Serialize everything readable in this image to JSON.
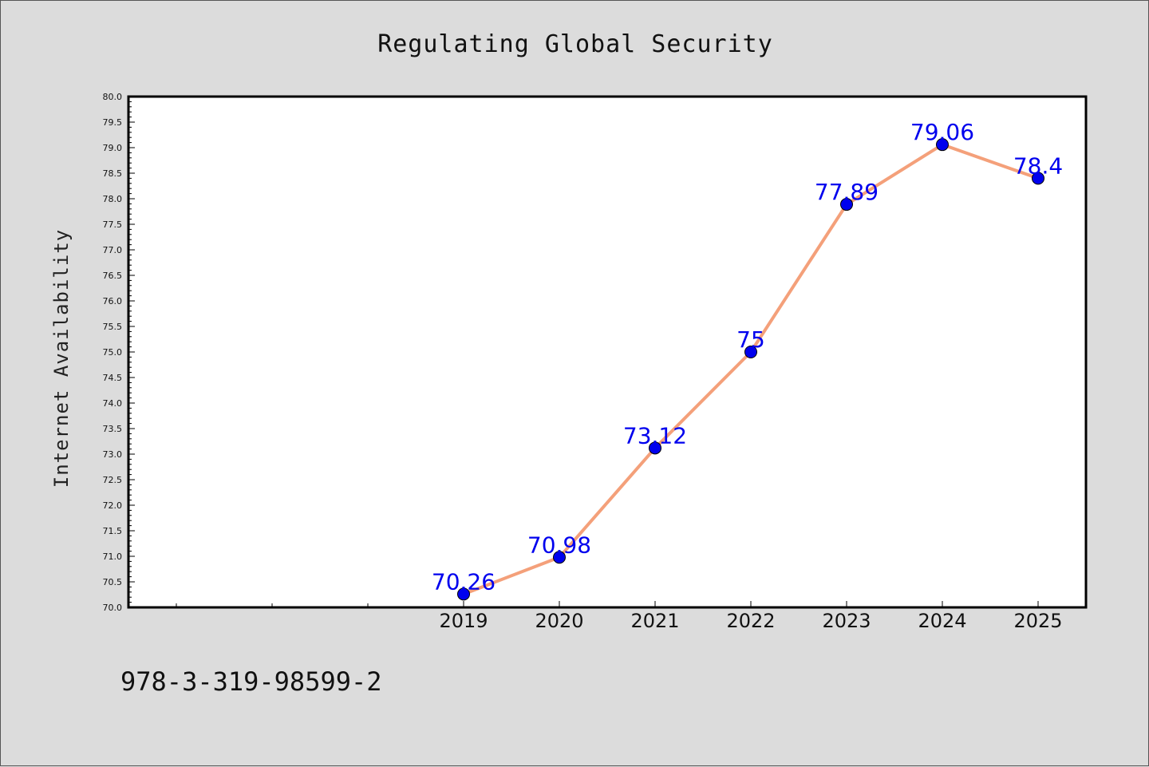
{
  "chart_data": {
    "type": "line",
    "title": "Regulating Global Security",
    "xlabel": "",
    "ylabel": "Internet Availability",
    "categories": [
      "2019",
      "2020",
      "2021",
      "2022",
      "2023",
      "2024",
      "2025"
    ],
    "series": [
      {
        "values": [
          70.26,
          70.98,
          73.12,
          75,
          77.89,
          79.06,
          78.4
        ],
        "labels": [
          "70.26",
          "70.98",
          "73.12",
          "75",
          "77.89",
          "79.06",
          "78.4"
        ]
      }
    ],
    "ylim": [
      70.0,
      80.0
    ],
    "yticks": [
      "70.0",
      "70.5",
      "71.0",
      "71.5",
      "72.0",
      "72.5",
      "73.0",
      "73.5",
      "74.0",
      "74.5",
      "75.0",
      "75.5",
      "76.0",
      "76.5",
      "77.0",
      "77.5",
      "78.0",
      "78.5",
      "79.0",
      "79.5",
      "80.0"
    ],
    "grid": false,
    "colors": {
      "line": "#f4a07a",
      "marker": "#0000ee",
      "label": "#0000ee",
      "background": "#dcdcdc",
      "plot_background": "#ffffff"
    }
  },
  "footer": {
    "code": "978-3-319-98599-2"
  }
}
